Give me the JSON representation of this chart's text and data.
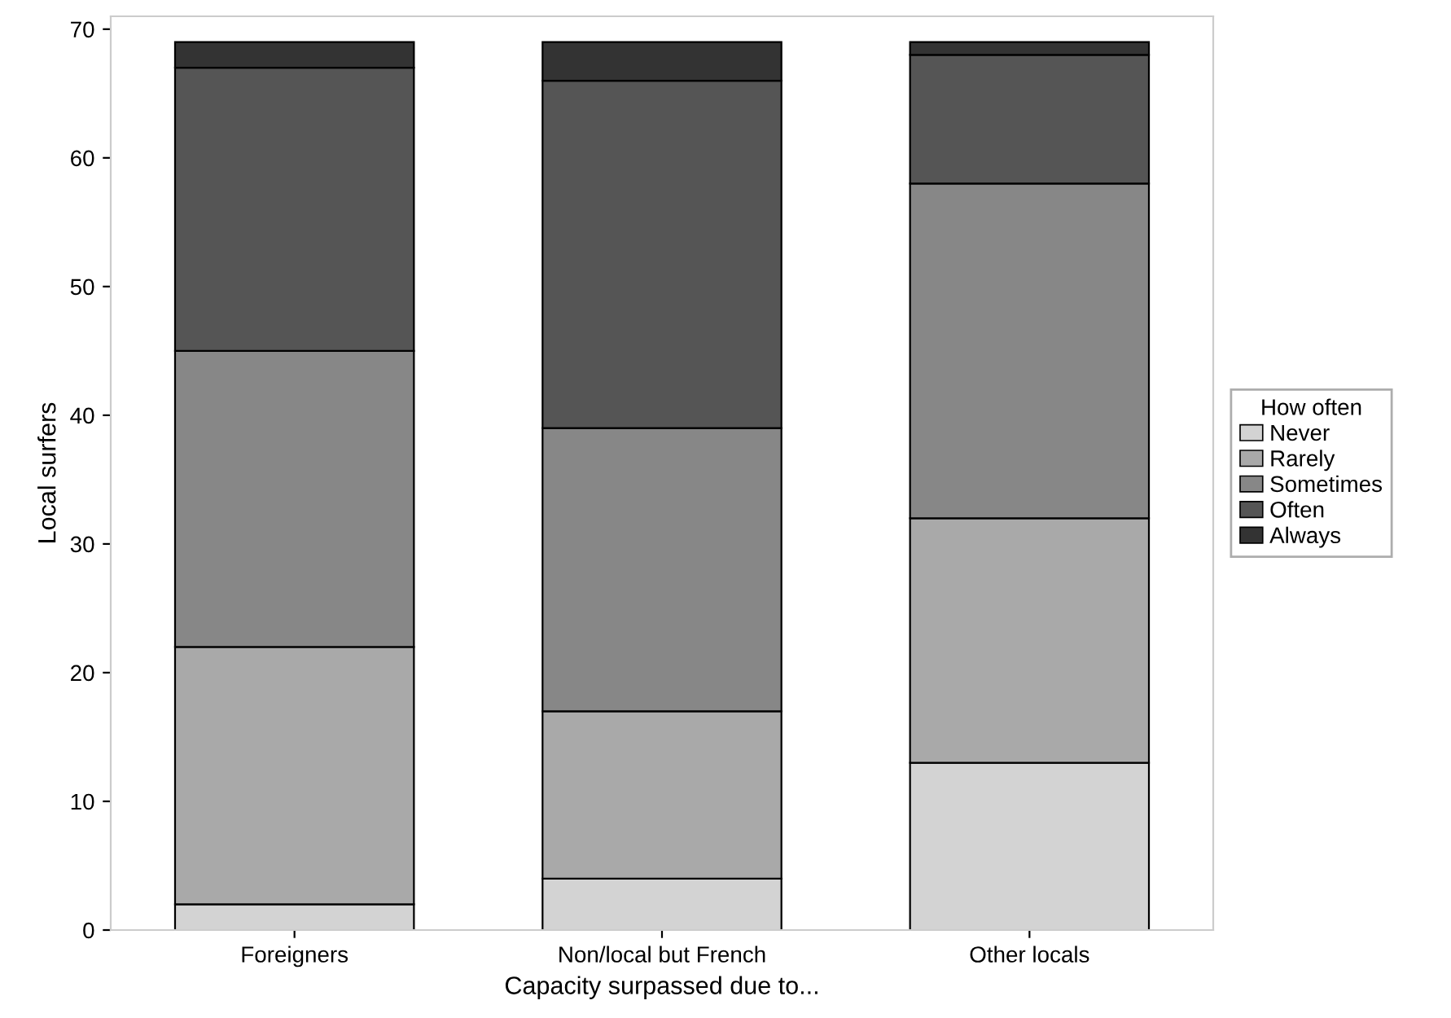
{
  "chart_data": {
    "type": "bar",
    "stacked": true,
    "xlabel": "Capacity surpassed due to...",
    "ylabel": "Local surfers",
    "legend_title": "How often",
    "legend": "right",
    "categories": [
      "Foreigners",
      "Non/local but French",
      "Other locals"
    ],
    "series": [
      {
        "name": "Never",
        "color": "#d3d3d3",
        "values": [
          2,
          4,
          13
        ]
      },
      {
        "name": "Rarely",
        "color": "#a9a9a9",
        "values": [
          20,
          13,
          19
        ]
      },
      {
        "name": "Sometimes",
        "color": "#878787",
        "values": [
          23,
          22,
          26
        ]
      },
      {
        "name": "Often",
        "color": "#555555",
        "values": [
          22,
          27,
          10
        ]
      },
      {
        "name": "Always",
        "color": "#333333",
        "values": [
          2,
          3,
          1
        ]
      }
    ],
    "ylim": [
      0,
      71
    ],
    "yticks": [
      0,
      10,
      20,
      30,
      40,
      50,
      60,
      70
    ],
    "grid": false
  }
}
